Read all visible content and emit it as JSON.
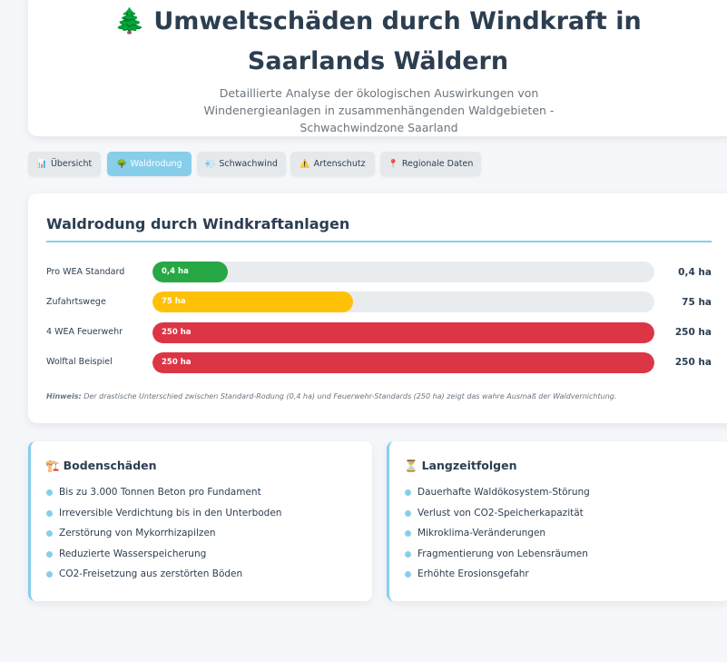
{
  "header": {
    "title_icon": "🌲",
    "title": "Umweltschäden durch Windkraft in Saarlands Wäldern",
    "subtitle": "Detaillierte Analyse der ökologischen Auswirkungen von Windenergieanlagen in zusammenhängenden Waldgebieten - Schwachwindzone Saarland"
  },
  "tabs": [
    {
      "icon": "📊",
      "icon_name": "bar-chart-icon",
      "label": "Übersicht",
      "active": false
    },
    {
      "icon": "🌳",
      "icon_name": "tree-icon",
      "label": "Waldrodung",
      "active": true
    },
    {
      "icon": "💨",
      "icon_name": "wind-icon",
      "label": "Schwachwind",
      "active": false
    },
    {
      "icon": "⚠️",
      "icon_name": "warning-icon",
      "label": "Artenschutz",
      "active": false
    },
    {
      "icon": "📍",
      "icon_name": "pin-icon",
      "label": "Regionale Daten",
      "active": false
    }
  ],
  "section": {
    "title": "Waldrodung durch Windkraftanlagen",
    "rows": [
      {
        "label": "Pro WEA Standard",
        "bar_text": "0,4 ha",
        "value": "0,4 ha",
        "fill_fraction": 0.15,
        "color": "#28a745"
      },
      {
        "label": "Zufahrtswege",
        "bar_text": "75 ha",
        "value": "75 ha",
        "fill_fraction": 0.4,
        "color": "#ffc107"
      },
      {
        "label": "4 WEA Feuerwehr",
        "bar_text": "250 ha",
        "value": "250 ha",
        "fill_fraction": 1.0,
        "color": "#dc3545"
      },
      {
        "label": "Wolftal Beispiel",
        "bar_text": "250 ha",
        "value": "250 ha",
        "fill_fraction": 1.0,
        "color": "#dc3545"
      }
    ],
    "hint_label": "Hinweis:",
    "hint_text": " Der drastische Unterschied zwischen Standard-Rodung (0,4 ha) und Feuerwehr-Standards (250 ha) zeigt das wahre Ausmaß der Waldvernichtung."
  },
  "cards": [
    {
      "icon": "🏗️",
      "icon_name": "construction-icon",
      "title": "Bodenschäden",
      "items": [
        "Bis zu 3.000 Tonnen Beton pro Fundament",
        "Irreversible Verdichtung bis in den Unterboden",
        "Zerstörung von Mykorrhizapilzen",
        "Reduzierte Wasserspeicherung",
        "CO2-Freisetzung aus zerstörten Böden"
      ]
    },
    {
      "icon": "⏳",
      "icon_name": "hourglass-icon",
      "title": "Langzeitfolgen",
      "items": [
        "Dauerhafte Waldökosystem-Störung",
        "Verlust von CO2-Speicherkapazität",
        "Mikroklima-Veränderungen",
        "Fragmentierung von Lebensräumen",
        "Erhöhte Erosionsgefahr"
      ]
    }
  ]
}
